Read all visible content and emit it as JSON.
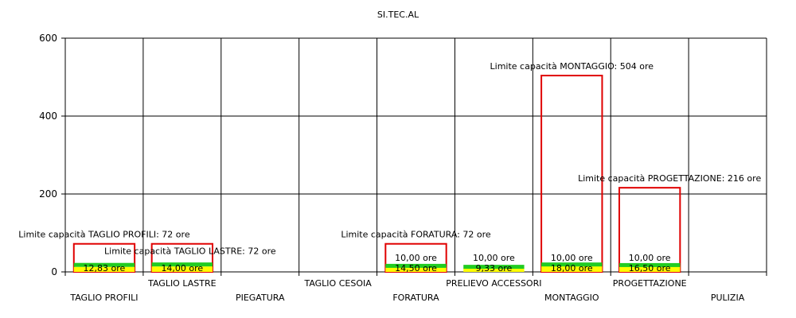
{
  "chart_data": {
    "type": "bar",
    "title": "SI.TEC.AL",
    "xlabel": "",
    "ylabel": "",
    "ylim": [
      0,
      600
    ],
    "yticks": [
      "0",
      "200",
      "400",
      "600"
    ],
    "grid": true,
    "categories": [
      "TAGLIO PROFILI",
      "TAGLIO LASTRE",
      "PIEGATURA",
      "TAGLIO CESOIA",
      "FORATURA",
      "PRELIEVO ACCESSORI",
      "MONTAGGIO",
      "PROGETTAZIONE",
      "PULIZIA"
    ],
    "series": [
      {
        "color": "#ffff00",
        "values": [
          12.83,
          14.0,
          null,
          null,
          14.5,
          9.33,
          18.0,
          16.5,
          null
        ],
        "labels": [
          "12,83 ore",
          "14,00 ore",
          "",
          "",
          "14,50 ore",
          "9,33 ore",
          "18,00 ore",
          "16,50 ore",
          ""
        ]
      },
      {
        "color": "#22cc22",
        "values": [
          null,
          null,
          null,
          null,
          10.0,
          10.0,
          10.0,
          10.0,
          null
        ],
        "labels": [
          "",
          "",
          "",
          "",
          "10,00 ore",
          "10,00 ore",
          "10,00 ore",
          "10,00 ore",
          ""
        ]
      },
      {
        "color": "#e00000",
        "values": [
          72,
          72,
          null,
          null,
          72,
          null,
          504,
          216,
          null
        ],
        "labels": [
          "Limite capacità TAGLIO PROFILI: 72 ore",
          "Limite capacità TAGLIO LASTRE: 72 ore",
          "",
          "",
          "Limite capacità FORATURA: 72 ore",
          "",
          "Limite capacità MONTAGGIO: 504 ore",
          "Limite capacità PROGETTAZIONE: 216 ore",
          ""
        ]
      }
    ]
  }
}
